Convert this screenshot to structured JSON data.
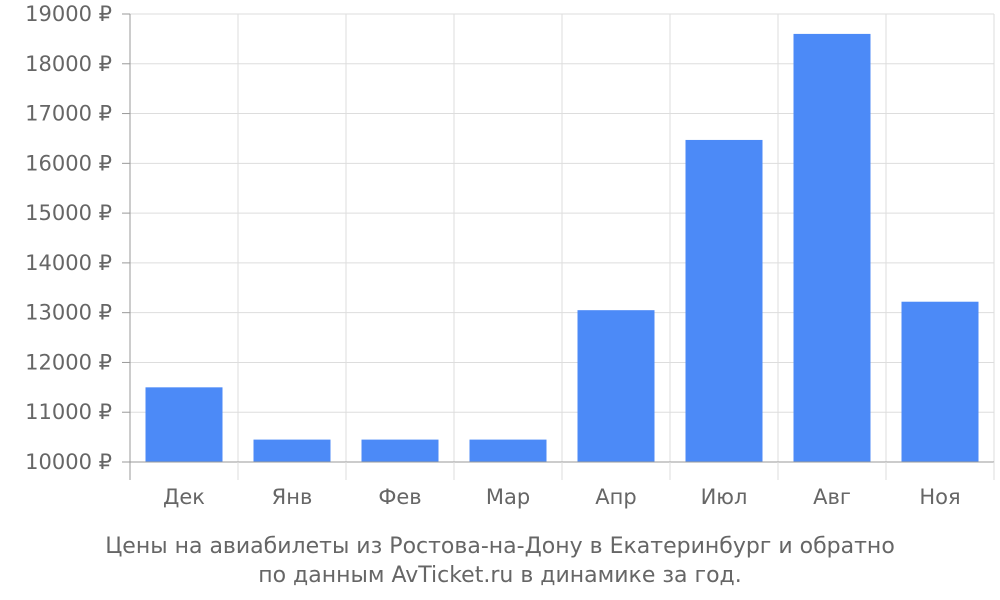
{
  "chart_data": {
    "type": "bar",
    "categories": [
      "Дек",
      "Янв",
      "Фев",
      "Мар",
      "Апр",
      "Июл",
      "Авг",
      "Ноя"
    ],
    "values": [
      11500,
      10450,
      10450,
      10450,
      13050,
      16470,
      18600,
      13220
    ],
    "ylim": [
      10000,
      19000
    ],
    "yticks": [
      "10000 ₽",
      "11000 ₽",
      "12000 ₽",
      "13000 ₽",
      "14000 ₽",
      "15000 ₽",
      "16000 ₽",
      "17000 ₽",
      "18000 ₽",
      "19000 ₽"
    ],
    "ytick_values": [
      10000,
      11000,
      12000,
      13000,
      14000,
      15000,
      16000,
      17000,
      18000,
      19000
    ],
    "grid": true,
    "bar_color": "#4c8af7",
    "grid_color": "#dddddd",
    "axis_color": "#999999",
    "text_color": "#666666"
  },
  "caption": {
    "line1": "Цены на авиабилеты из Ростова-на-Дону в Екатеринбург и обратно",
    "line2": "по данным AvTicket.ru в динамике за год."
  }
}
